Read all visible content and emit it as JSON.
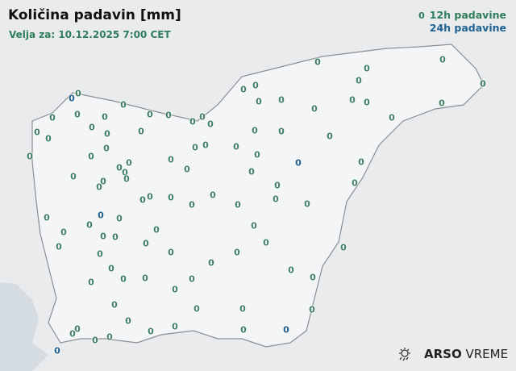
{
  "header": {
    "title": "Količina padavin [mm]",
    "valid_label": "Velja za: 10.12.2025 7:00 CET"
  },
  "legend": {
    "sample_value": "0",
    "items": [
      {
        "label": "12h padavine",
        "color": "#2e7d5b"
      },
      {
        "label": "24h padavine",
        "color": "#1e6391"
      }
    ]
  },
  "stations_12h": {
    "value": "0",
    "count": 96,
    "color": "#3f7f64"
  },
  "stations_24h": {
    "value": "0",
    "count": 5,
    "color": "#1e5f8c"
  },
  "logo": {
    "brand": "ARSO",
    "product": "VREME",
    "icon": "sun-rain-icon"
  }
}
